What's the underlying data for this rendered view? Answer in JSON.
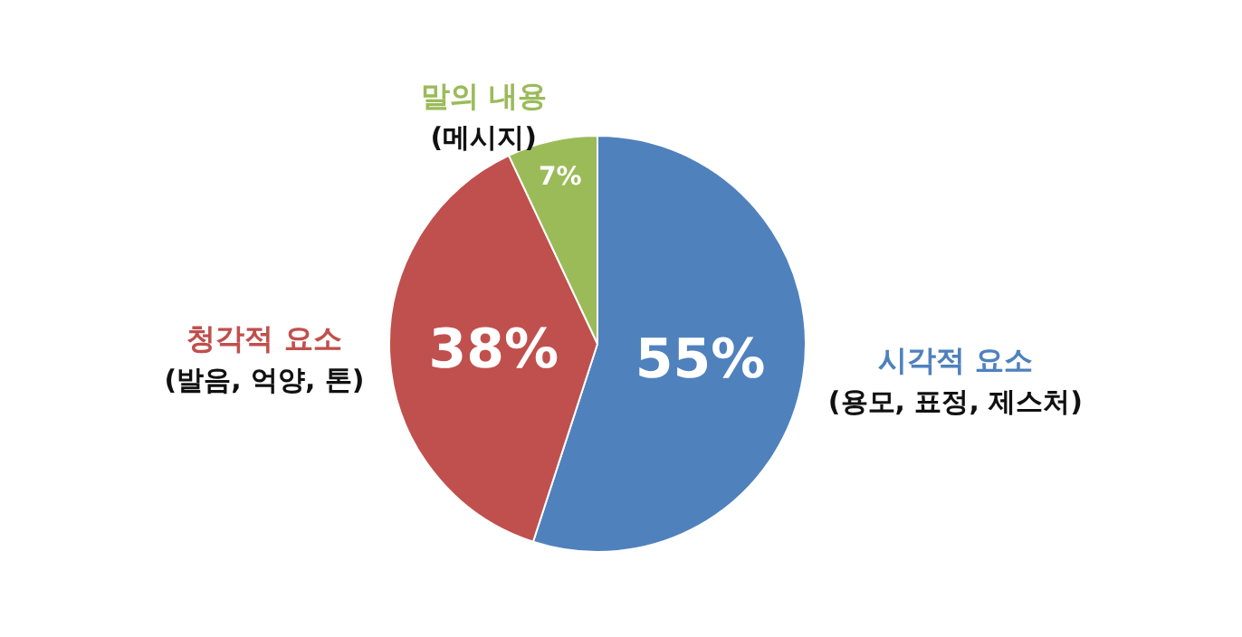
{
  "chart_data": {
    "type": "pie",
    "categories": [
      "시각적 요소\n(용모, 표정, 제스처)",
      "청각적 요소\n(발음, 억양, 톤)",
      "말의 내용\n(메시지)"
    ],
    "values": [
      55,
      38,
      7
    ],
    "colors": [
      "#4f81bd",
      "#c0504d",
      "#9bbb59"
    ],
    "value_labels": [
      "55%",
      "38%",
      "7%"
    ]
  }
}
